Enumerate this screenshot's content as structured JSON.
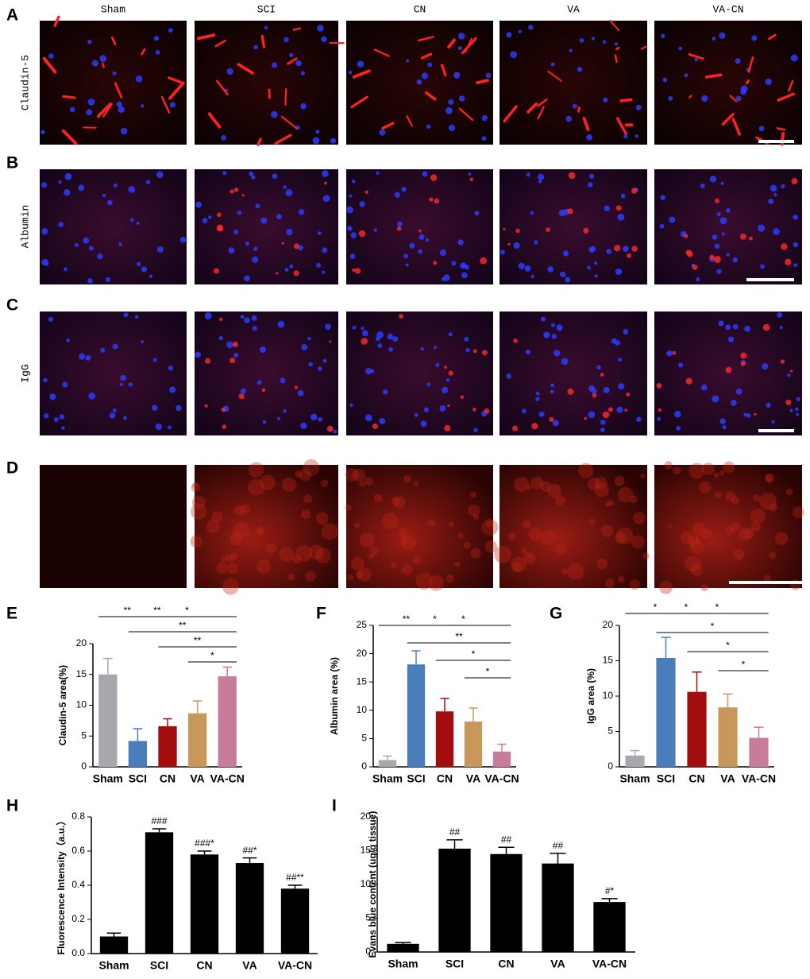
{
  "figure": {
    "panel_labels": [
      "A",
      "B",
      "C",
      "D",
      "E",
      "F",
      "G",
      "H",
      "I"
    ],
    "columns": [
      "Sham",
      "SCI",
      "CN",
      "VA",
      "VA-CN"
    ],
    "rows": [
      "Claudin-5",
      "Albumin",
      "IgG"
    ]
  },
  "chart_data": [
    {
      "type": "bar",
      "ylabel": "Claudin-5 area(%)",
      "categories": [
        "Sham",
        "SCI",
        "CN",
        "VA",
        "VA-CN"
      ],
      "values": [
        15.0,
        4.2,
        6.6,
        8.7,
        14.7
      ],
      "errors": [
        2.6,
        2.0,
        1.2,
        2.0,
        1.5
      ],
      "colors": [
        "#a7a7ad",
        "#4a7ebb",
        "#a30d0d",
        "#c8975a",
        "#c97b9c"
      ],
      "ylim": [
        0,
        20
      ],
      "yticks": [
        0,
        5,
        10,
        15,
        20
      ],
      "significance": [
        [
          "**",
          "**",
          "*"
        ],
        [
          "**"
        ],
        [
          "**"
        ],
        [
          "*"
        ]
      ]
    },
    {
      "type": "bar",
      "ylabel": "Albumin area (%)",
      "categories": [
        "Sham",
        "SCI",
        "CN",
        "VA",
        "VA-CN"
      ],
      "values": [
        1.2,
        18.1,
        9.8,
        8.0,
        2.7
      ],
      "errors": [
        0.7,
        2.4,
        2.3,
        2.4,
        1.3
      ],
      "colors": [
        "#a7a7ad",
        "#4a7ebb",
        "#a30d0d",
        "#c8975a",
        "#c97b9c"
      ],
      "ylim": [
        0,
        25
      ],
      "yticks": [
        0,
        5,
        10,
        15,
        20,
        25
      ],
      "significance": [
        [
          "**",
          "*",
          "*"
        ],
        [
          "**"
        ],
        [
          "*"
        ],
        [
          "*"
        ]
      ]
    },
    {
      "type": "bar",
      "ylabel": "IgG area (%)",
      "categories": [
        "Sham",
        "SCI",
        "CN",
        "VA",
        "VA-CN"
      ],
      "values": [
        1.6,
        15.4,
        10.6,
        8.4,
        4.1
      ],
      "errors": [
        0.7,
        2.9,
        2.8,
        1.9,
        1.5
      ],
      "colors": [
        "#a7a7ad",
        "#4a7ebb",
        "#a30d0d",
        "#c8975a",
        "#c97b9c"
      ],
      "ylim": [
        0,
        20
      ],
      "yticks": [
        0,
        5,
        10,
        15,
        20
      ],
      "significance": [
        [
          "*",
          "*",
          "*"
        ],
        [
          "*"
        ],
        [
          "*"
        ],
        [
          "*"
        ]
      ]
    },
    {
      "type": "bar",
      "ylabel": "Fluorescence Intensity（a.u.）",
      "categories": [
        "Sham",
        "SCI",
        "CN",
        "VA",
        "VA-CN"
      ],
      "values": [
        0.1,
        0.71,
        0.58,
        0.53,
        0.38
      ],
      "errors": [
        0.02,
        0.02,
        0.02,
        0.03,
        0.02
      ],
      "colors": [
        "#000000",
        "#000000",
        "#000000",
        "#000000",
        "#000000"
      ],
      "ylim": [
        0,
        0.8
      ],
      "yticks": [
        {
          "value": 0,
          "label": "0.0"
        },
        0.2,
        0.4,
        0.6,
        0.8
      ],
      "annotations": [
        null,
        "###",
        "###*",
        "##*",
        "##**"
      ]
    },
    {
      "type": "bar",
      "ylabel": "Evans blue content (ug/g tissue)",
      "categories": [
        "Sham",
        "SCI",
        "CN",
        "VA",
        "VA-CN"
      ],
      "values": [
        1.2,
        15.3,
        14.5,
        13.1,
        7.4
      ],
      "errors": [
        0.2,
        1.3,
        1.0,
        1.5,
        0.5
      ],
      "colors": [
        "#000000",
        "#000000",
        "#000000",
        "#000000",
        "#000000"
      ],
      "ylim": [
        0,
        20
      ],
      "yticks": [
        0,
        5,
        10,
        15,
        20
      ],
      "annotations": [
        null,
        "##",
        "##",
        "##",
        "#*"
      ]
    }
  ]
}
